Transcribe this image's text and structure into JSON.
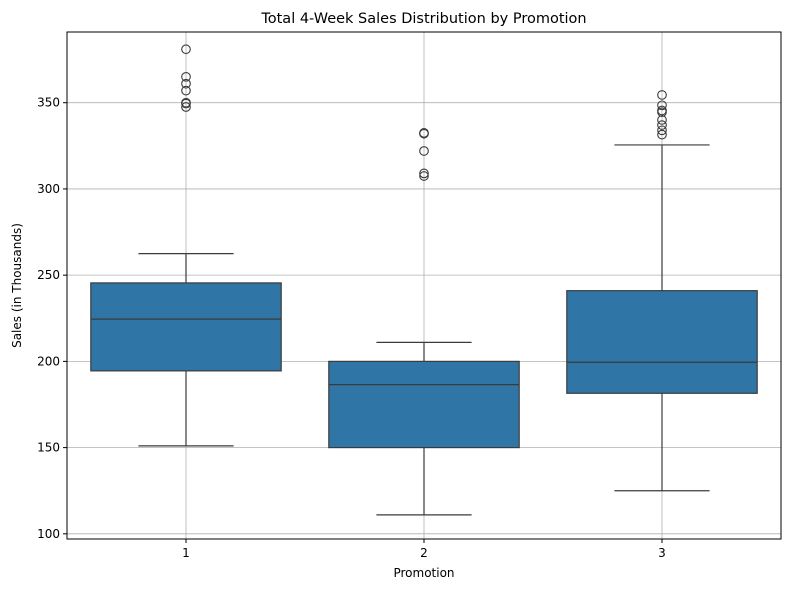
{
  "chart_data": {
    "type": "box",
    "title": "Total 4-Week Sales Distribution by Promotion",
    "xlabel": "Promotion",
    "ylabel": "Sales (in Thousands)",
    "categories": [
      "1",
      "2",
      "3"
    ],
    "yticks": [
      100,
      150,
      200,
      250,
      300,
      350
    ],
    "ylim": [
      97,
      391
    ],
    "grid": true,
    "box_color": "#2f75a6",
    "line_color": "#3b3b3b",
    "boxes": [
      {
        "category": "1",
        "whisker_low": 151,
        "q1": 194.5,
        "median": 224.5,
        "q3": 245.5,
        "whisker_high": 262.5,
        "outliers": [
          347.5,
          349.5,
          350,
          357,
          361,
          365,
          381
        ]
      },
      {
        "category": "2",
        "whisker_low": 111,
        "q1": 150,
        "median": 186.5,
        "q3": 200,
        "whisker_high": 211,
        "outliers": [
          307.5,
          309,
          322,
          332,
          332.5
        ]
      },
      {
        "category": "3",
        "whisker_low": 125,
        "q1": 181.5,
        "median": 199.5,
        "q3": 241,
        "whisker_high": 325.5,
        "outliers": [
          331.5,
          334,
          337,
          340,
          344.5,
          345.5,
          348.5,
          354.5
        ]
      }
    ]
  }
}
